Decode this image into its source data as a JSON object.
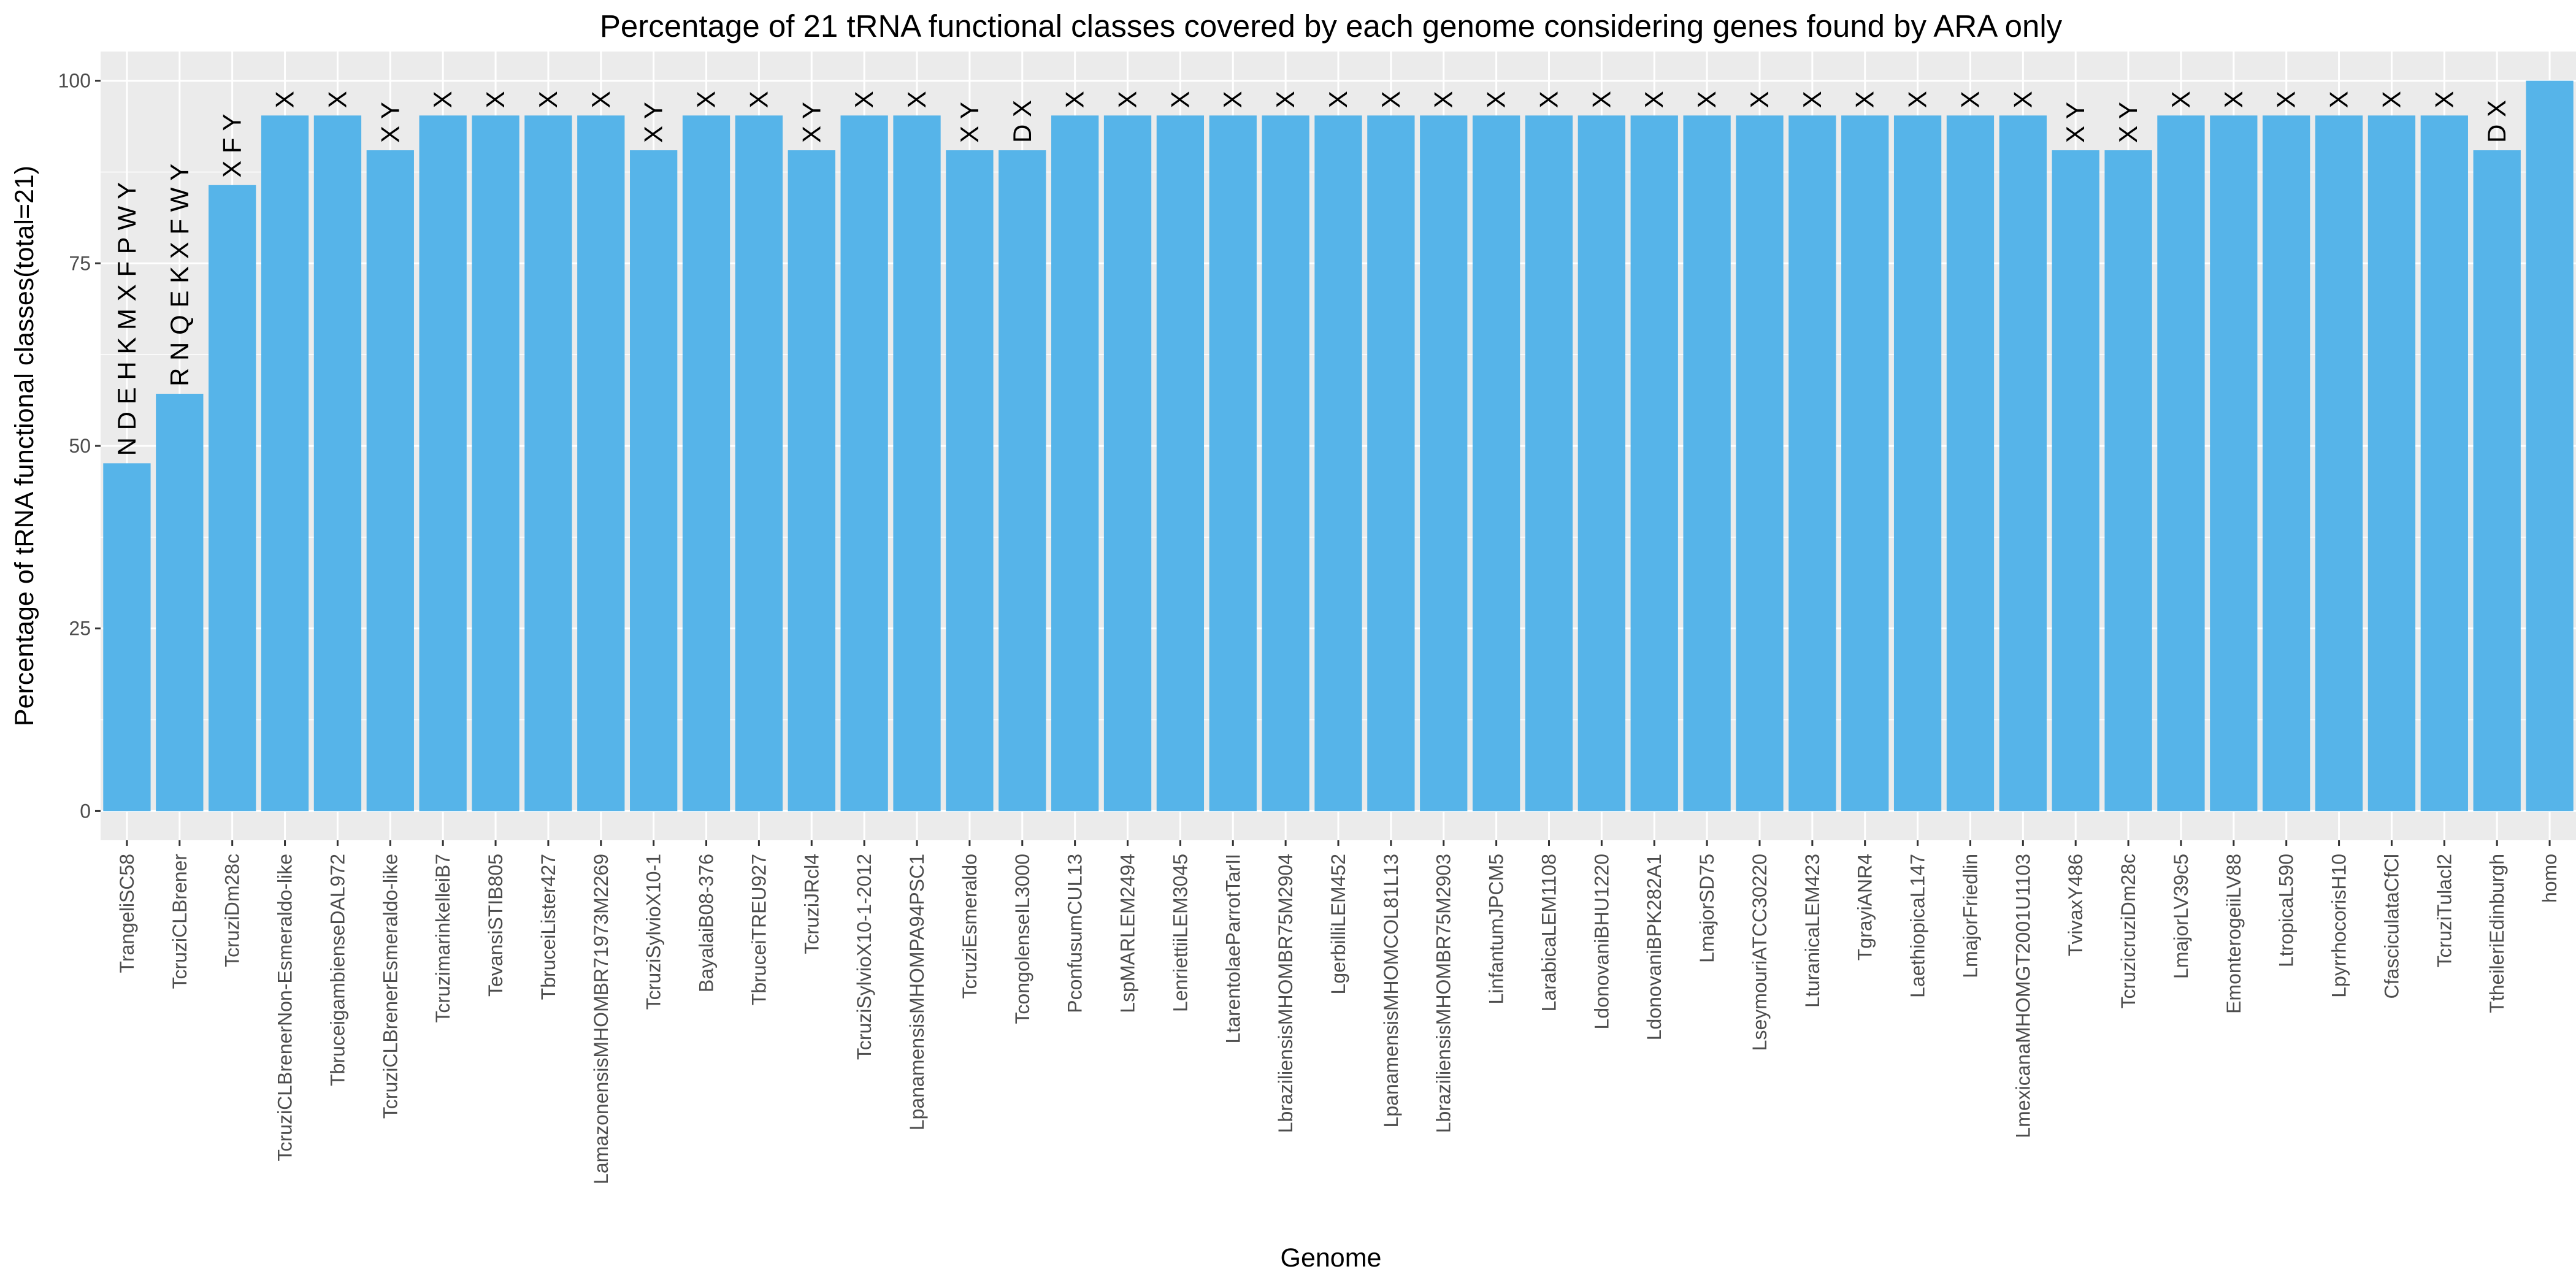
{
  "chart_data": {
    "type": "bar",
    "title": "Percentage of 21 tRNA functional classes covered by each genome considering genes found by ARA only",
    "xlabel": "Genome",
    "ylabel": "Percentage of tRNA functional classes(total=21)",
    "ylim": [
      -4,
      104
    ],
    "yticks": [
      0,
      25,
      50,
      75,
      100
    ],
    "grid": true,
    "legend": "none",
    "colors": {
      "bar": "#56B4E9",
      "panel": "#EBEBEB",
      "grid_major": "#FFFFFF",
      "tick": "#333333",
      "tick_label": "#4D4D4D"
    },
    "categories": [
      "TrangeliSC58",
      "TcruziCLBrener",
      "TcruziDm28c",
      "TcruziCLBrenerNon-Esmeraldo-like",
      "TbruceigambienseDAL972",
      "TcruziCLBrenerEsmeraldo-like",
      "TcruzimarinkelleiB7",
      "TevansiSTIB805",
      "TbruceiLister427",
      "LamazonensisMHOMBR71973M2269",
      "TcruziSylvioX10-1",
      "BayalaiB08-376",
      "TbruceiTREU927",
      "TcruziJRcl4",
      "TcruziSylvioX10-1-2012",
      "LpanamensisMHOMPA94PSC1",
      "TcruziEsmeraldo",
      "TcongolenseIL3000",
      "PconfusumCUL13",
      "LspMARLEM2494",
      "LenriettiiLEM3045",
      "LtarentolaeParrotTarII",
      "LbraziliensisMHOMBR75M2904",
      "LgerbilliLEM452",
      "LpanamensisMHOMCOL81L13",
      "LbraziliensisMHOMBR75M2903",
      "LinfantumJPCM5",
      "LarabicaLEM1108",
      "LdonovaniBHU1220",
      "LdonovaniBPK282A1",
      "LmajorSD75",
      "LseymouriATCC30220",
      "LturanicaLEM423",
      "TgrayiANR4",
      "LaethiopicaL147",
      "LmajorFriedlin",
      "LmexicanaMHOMGT2001U1103",
      "TvivaxY486",
      "TcruzicruziDm28c",
      "LmajorLV39c5",
      "EmonterogeiiLV88",
      "LtropicaL590",
      "LpyrrhocorisH10",
      "CfasciculataCfCl",
      "TcruziTulacl2",
      "TtheileriEdinburgh",
      "homo"
    ],
    "values": [
      47.62,
      57.14,
      85.71,
      95.24,
      95.24,
      90.48,
      95.24,
      95.24,
      95.24,
      95.24,
      90.48,
      95.24,
      95.24,
      90.48,
      95.24,
      95.24,
      90.48,
      90.48,
      95.24,
      95.24,
      95.24,
      95.24,
      95.24,
      95.24,
      95.24,
      95.24,
      95.24,
      95.24,
      95.24,
      95.24,
      95.24,
      95.24,
      95.24,
      95.24,
      95.24,
      95.24,
      95.24,
      90.48,
      90.48,
      95.24,
      95.24,
      95.24,
      95.24,
      95.24,
      95.24,
      90.48,
      100
    ],
    "annotations": [
      "N D E H K M X F P W Y",
      "R N Q E K X F W Y",
      "X F Y",
      "X",
      "X",
      "X Y",
      "X",
      "X",
      "X",
      "X",
      "X Y",
      "X",
      "X",
      "X Y",
      "X",
      "X",
      "X Y",
      "D X",
      "X",
      "X",
      "X",
      "X",
      "X",
      "X",
      "X",
      "X",
      "X",
      "X",
      "X",
      "X",
      "X",
      "X",
      "X",
      "X",
      "X",
      "X",
      "X",
      "X Y",
      "X Y",
      "X",
      "X",
      "X",
      "X",
      "X",
      "X",
      "D X",
      ""
    ]
  }
}
